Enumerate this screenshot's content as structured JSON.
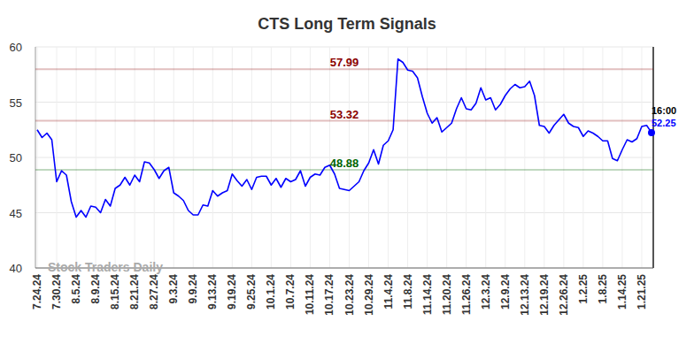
{
  "chart_data": {
    "type": "line",
    "title": "CTS Long Term Signals",
    "watermark": "Stock Traders Daily",
    "categories": [
      "7.24.24",
      null,
      null,
      null,
      "7.30.24",
      null,
      null,
      null,
      "8.5.24",
      null,
      null,
      null,
      "8.9.24",
      null,
      null,
      null,
      "8.15.24",
      null,
      null,
      null,
      "8.21.24",
      null,
      null,
      null,
      "8.27.24",
      null,
      null,
      null,
      "9.3.24",
      null,
      null,
      null,
      "9.9.24",
      null,
      null,
      null,
      "9.13.24",
      null,
      null,
      null,
      "9.19.24",
      null,
      null,
      null,
      "9.25.24",
      null,
      null,
      null,
      "10.1.24",
      null,
      null,
      null,
      "10.7.24",
      null,
      null,
      null,
      "10.11.24",
      null,
      null,
      null,
      "10.17.24",
      null,
      null,
      null,
      "10.23.24",
      null,
      null,
      null,
      "10.29.24",
      null,
      null,
      null,
      "11.4.24",
      null,
      null,
      null,
      "11.8.24",
      null,
      null,
      null,
      "11.14.24",
      null,
      null,
      null,
      "11.20.24",
      null,
      null,
      null,
      "11.26.24",
      null,
      null,
      null,
      "12.3.24",
      null,
      null,
      null,
      "12.9.24",
      null,
      null,
      null,
      "12.13.24",
      null,
      null,
      null,
      "12.19.24",
      null,
      null,
      null,
      "12.26.24",
      null,
      null,
      null,
      "1.2.25",
      null,
      null,
      null,
      "1.8.25",
      null,
      null,
      null,
      "1.14.25",
      null,
      null,
      null,
      "1.21.25",
      null,
      null
    ],
    "values": [
      52.5,
      51.8,
      52.2,
      51.6,
      47.8,
      48.8,
      48.4,
      46.0,
      44.6,
      45.2,
      44.6,
      45.6,
      45.5,
      45.0,
      46.2,
      45.6,
      47.2,
      47.5,
      48.2,
      47.5,
      48.4,
      47.8,
      49.6,
      49.5,
      48.9,
      48.1,
      48.8,
      49.1,
      46.8,
      46.5,
      46.1,
      45.2,
      44.8,
      44.8,
      45.7,
      45.6,
      47.0,
      46.5,
      46.8,
      47.0,
      48.5,
      47.9,
      47.4,
      48.0,
      47.1,
      48.2,
      48.3,
      48.3,
      47.5,
      48.1,
      47.3,
      48.1,
      47.8,
      48.0,
      48.8,
      47.4,
      48.2,
      48.5,
      48.4,
      49.1,
      49.3,
      48.5,
      47.2,
      47.1,
      47.0,
      47.4,
      47.8,
      48.8,
      49.5,
      50.7,
      49.4,
      51.1,
      51.5,
      52.5,
      58.9,
      58.6,
      57.9,
      57.8,
      57.2,
      55.5,
      54.0,
      53.1,
      53.6,
      52.3,
      52.7,
      53.1,
      54.4,
      55.4,
      54.4,
      54.3,
      54.9,
      56.3,
      55.2,
      55.4,
      54.3,
      54.8,
      55.6,
      56.2,
      56.6,
      56.3,
      56.4,
      56.9,
      55.6,
      52.9,
      52.8,
      52.2,
      52.9,
      53.4,
      53.9,
      53.1,
      52.8,
      52.7,
      51.9,
      52.4,
      52.2,
      51.9,
      51.5,
      51.5,
      49.9,
      49.7,
      50.7,
      51.6,
      51.4,
      51.7,
      52.8,
      52.9,
      52.25
    ],
    "color": "#0000ff",
    "ylim": [
      40,
      60
    ],
    "yticks": [
      40,
      45,
      50,
      55,
      60
    ],
    "grid": true,
    "hlines": [
      {
        "value": 57.99,
        "color": "#8b0000"
      },
      {
        "value": 53.32,
        "color": "#8b0000"
      },
      {
        "value": 48.88,
        "color": "#006400"
      }
    ],
    "annotations": [
      {
        "text": "16:00"
      }
    ]
  }
}
